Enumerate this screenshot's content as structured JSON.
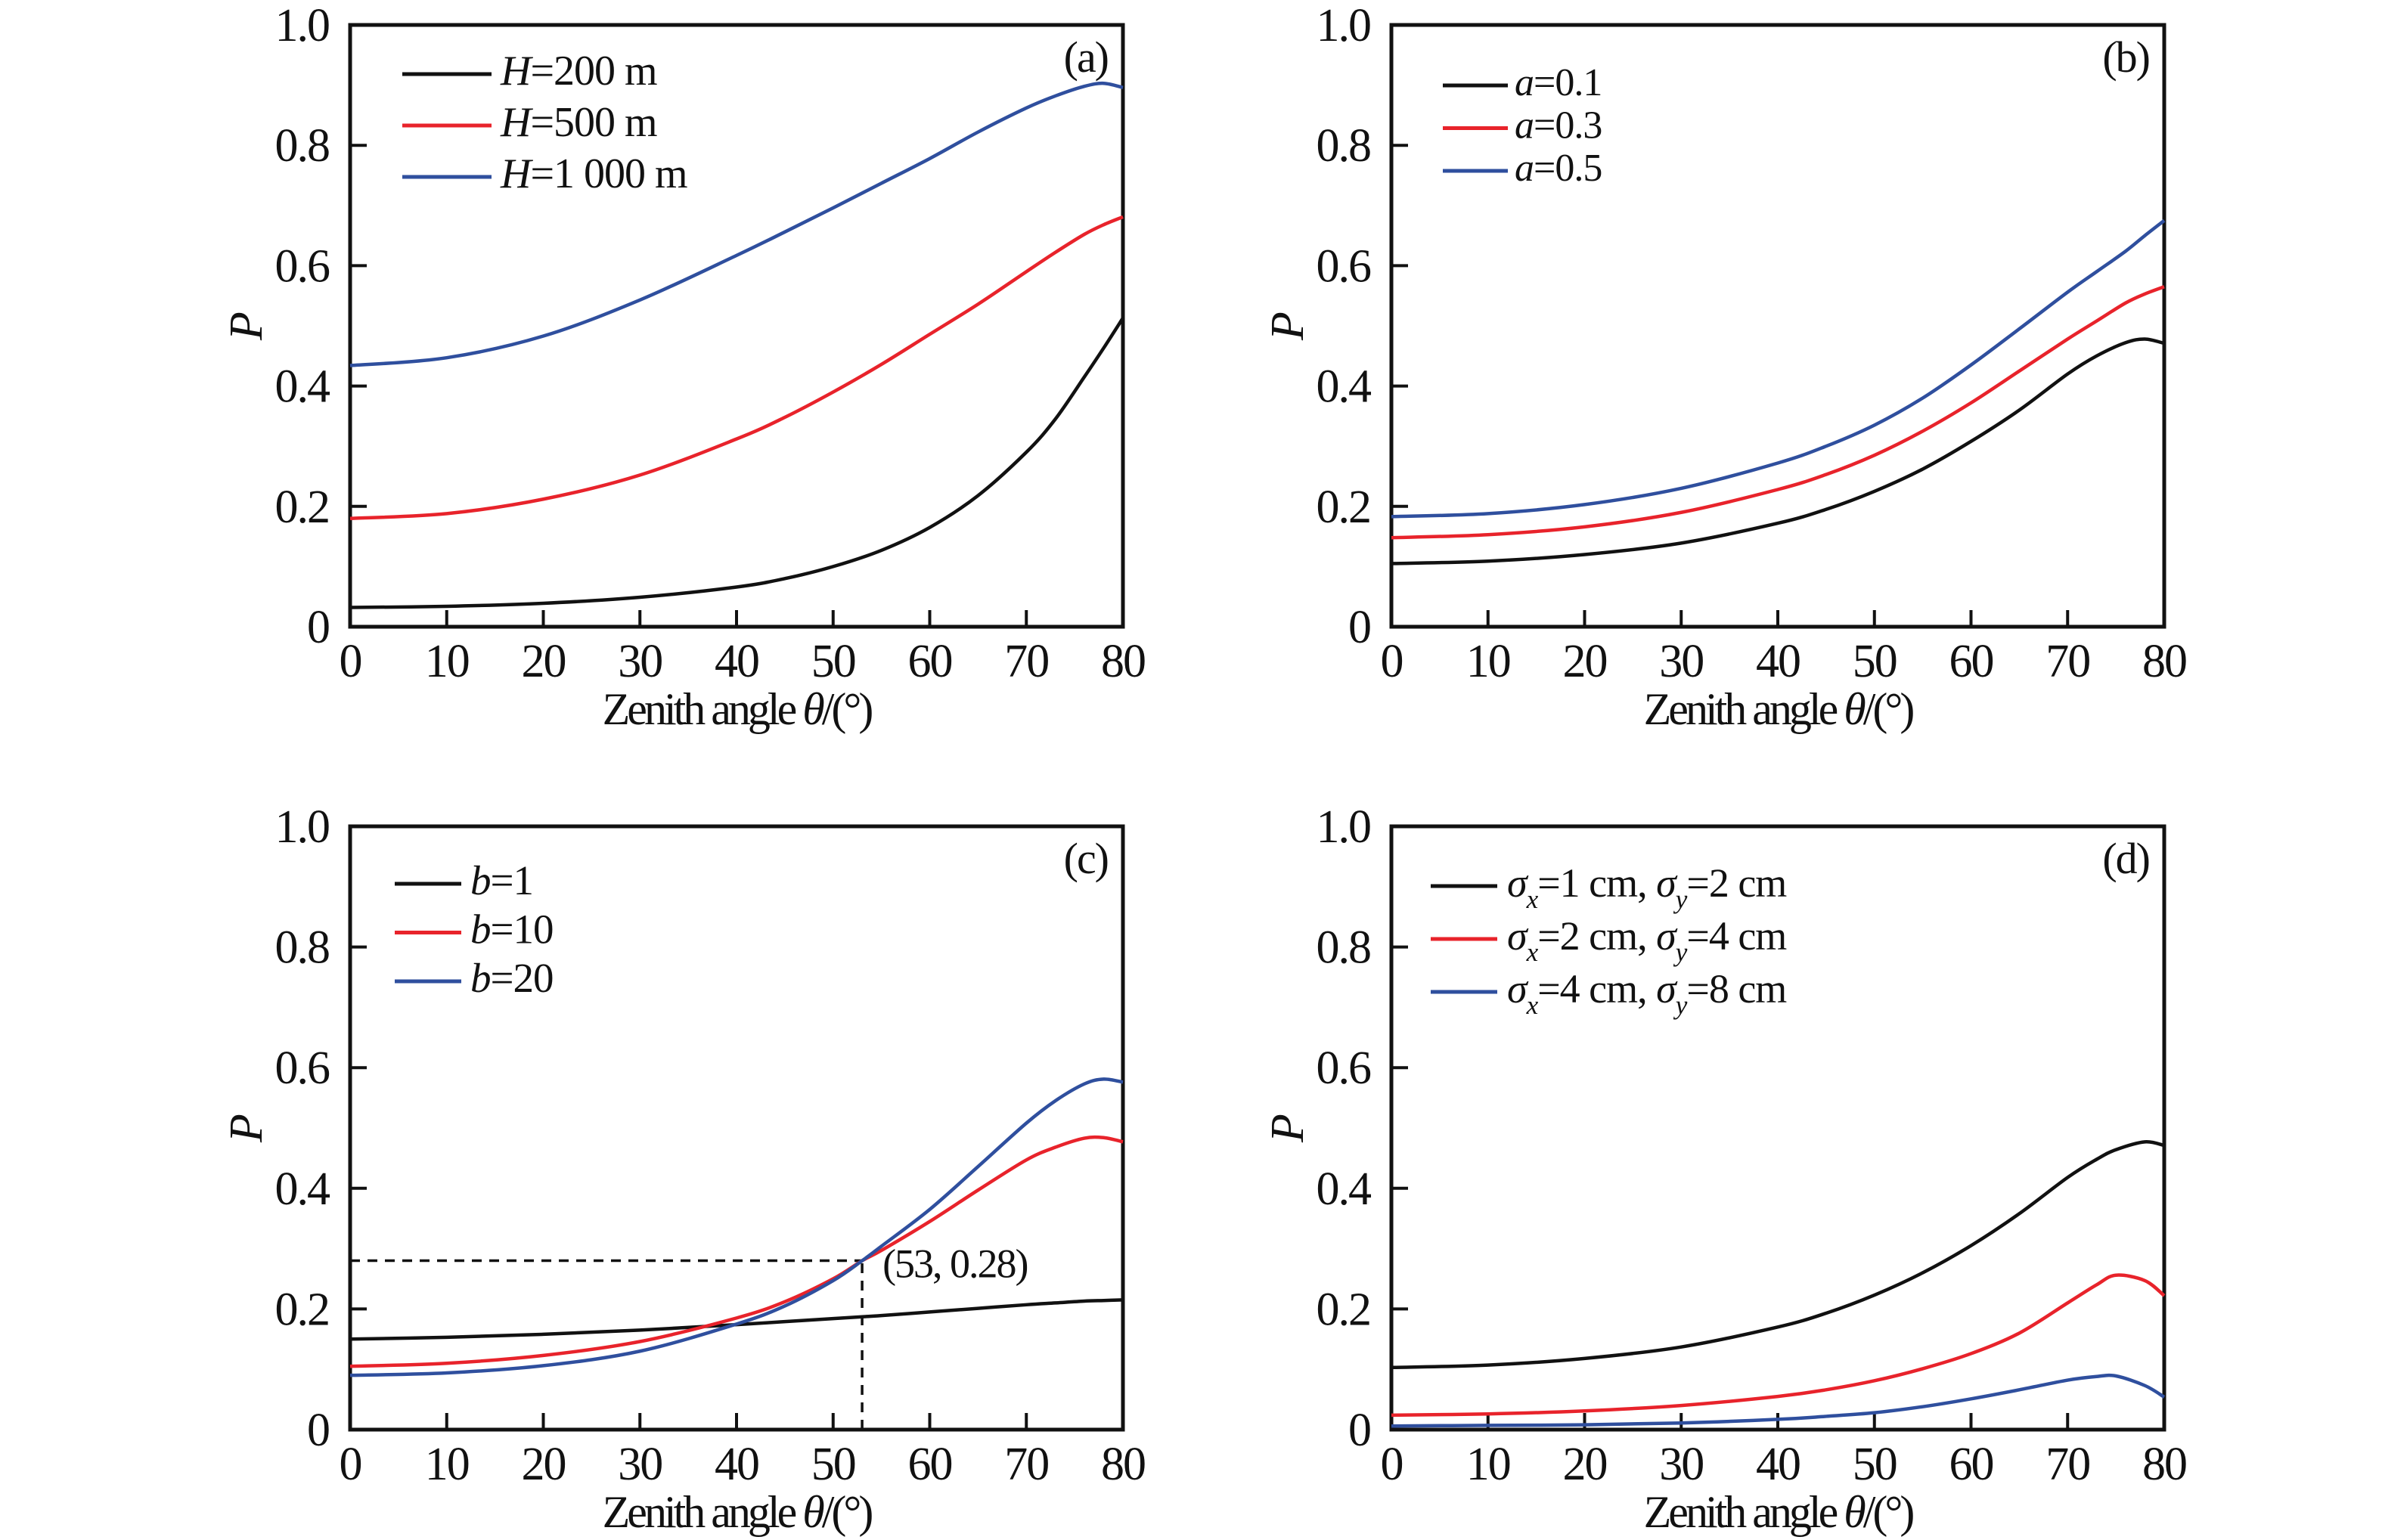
{
  "figure": {
    "background": "#ffffff"
  },
  "palette": {
    "black": "#111111",
    "red": "#e8232b",
    "blue": "#2f4f9e"
  },
  "axes": {
    "xlabel_parts": [
      {
        "t": "Zenith angle "
      },
      {
        "t": "θ",
        "i": true
      },
      {
        "t": "/(°)"
      }
    ],
    "ylabel_parts": [
      {
        "t": "P",
        "i": true
      }
    ],
    "xticks": [
      0,
      10,
      20,
      30,
      40,
      50,
      60,
      70,
      80
    ],
    "yticks": [
      0,
      0.2,
      0.4,
      0.6,
      0.8,
      1.0
    ],
    "ytick_labels": [
      "0",
      "0.2",
      "0.4",
      "0.6",
      "0.8",
      "1.0"
    ],
    "xlim": [
      0,
      80
    ],
    "ylim": [
      0,
      1
    ],
    "grid": false,
    "legend_position": "upper-left-inside"
  },
  "chart_data": [
    {
      "id": "a",
      "type": "line",
      "panel_label": "(a)",
      "xlabel": "Zenith angle θ/(°)",
      "ylabel": "P",
      "x": [
        0,
        10,
        20,
        30,
        40,
        45,
        50,
        55,
        60,
        65,
        70,
        73,
        76,
        78,
        80
      ],
      "series": [
        {
          "name": "H=200 m",
          "name_parts": [
            {
              "t": "H",
              "i": true
            },
            {
              "t": "=200 m"
            }
          ],
          "color": "black",
          "values": [
            0.032,
            0.034,
            0.039,
            0.049,
            0.066,
            0.08,
            0.1,
            0.127,
            0.165,
            0.218,
            0.29,
            0.345,
            0.415,
            0.463,
            0.513
          ]
        },
        {
          "name": "H=500 m",
          "name_parts": [
            {
              "t": "H",
              "i": true
            },
            {
              "t": "=500 m"
            }
          ],
          "color": "red",
          "values": [
            0.18,
            0.188,
            0.212,
            0.252,
            0.312,
            0.348,
            0.39,
            0.436,
            0.486,
            0.536,
            0.59,
            0.622,
            0.652,
            0.668,
            0.681
          ]
        },
        {
          "name": "H=1 000 m",
          "name_parts": [
            {
              "t": "H",
              "i": true
            },
            {
              "t": "=1 000 m"
            }
          ],
          "color": "blue",
          "values": [
            0.434,
            0.447,
            0.483,
            0.543,
            0.617,
            0.656,
            0.696,
            0.737,
            0.778,
            0.822,
            0.862,
            0.882,
            0.898,
            0.903,
            0.896
          ]
        }
      ]
    },
    {
      "id": "b",
      "type": "line",
      "panel_label": "(b)",
      "xlabel": "Zenith angle θ/(°)",
      "ylabel": "P",
      "x": [
        0,
        10,
        20,
        30,
        40,
        45,
        50,
        55,
        60,
        65,
        70,
        73,
        76,
        78,
        80
      ],
      "series": [
        {
          "name": "a=0.1",
          "name_parts": [
            {
              "t": "a",
              "i": true
            },
            {
              "t": "=0.1"
            }
          ],
          "color": "black",
          "values": [
            0.105,
            0.109,
            0.12,
            0.139,
            0.172,
            0.195,
            0.225,
            0.262,
            0.308,
            0.36,
            0.42,
            0.45,
            0.472,
            0.478,
            0.471
          ]
        },
        {
          "name": "a=0.3",
          "name_parts": [
            {
              "t": "a",
              "i": true
            },
            {
              "t": "=0.3"
            }
          ],
          "color": "red",
          "values": [
            0.148,
            0.153,
            0.166,
            0.19,
            0.228,
            0.253,
            0.285,
            0.325,
            0.372,
            0.425,
            0.478,
            0.508,
            0.538,
            0.553,
            0.565
          ]
        },
        {
          "name": "a=0.5",
          "name_parts": [
            {
              "t": "a",
              "i": true
            },
            {
              "t": "=0.5"
            }
          ],
          "color": "blue",
          "values": [
            0.183,
            0.188,
            0.203,
            0.23,
            0.272,
            0.3,
            0.335,
            0.38,
            0.435,
            0.495,
            0.556,
            0.59,
            0.624,
            0.65,
            0.675
          ]
        }
      ]
    },
    {
      "id": "c",
      "type": "line",
      "panel_label": "(c)",
      "xlabel": "Zenith angle θ/(°)",
      "ylabel": "P",
      "x": [
        0,
        10,
        20,
        30,
        40,
        45,
        50,
        53,
        55,
        60,
        65,
        70,
        73,
        76,
        78,
        80
      ],
      "series": [
        {
          "name": "b=1",
          "name_parts": [
            {
              "t": "b",
              "i": true
            },
            {
              "t": "=1"
            }
          ],
          "color": "black",
          "values": [
            0.15,
            0.153,
            0.158,
            0.165,
            0.174,
            0.179,
            0.184,
            0.187,
            0.189,
            0.195,
            0.201,
            0.207,
            0.21,
            0.213,
            0.214,
            0.215
          ]
        },
        {
          "name": "b=10",
          "name_parts": [
            {
              "t": "b",
              "i": true
            },
            {
              "t": "=10"
            }
          ],
          "color": "red",
          "values": [
            0.105,
            0.11,
            0.123,
            0.146,
            0.185,
            0.212,
            0.25,
            0.28,
            0.297,
            0.345,
            0.397,
            0.447,
            0.468,
            0.483,
            0.484,
            0.477
          ]
        },
        {
          "name": "b=20",
          "name_parts": [
            {
              "t": "b",
              "i": true
            },
            {
              "t": "=20"
            }
          ],
          "color": "blue",
          "values": [
            0.09,
            0.094,
            0.106,
            0.13,
            0.175,
            0.205,
            0.247,
            0.28,
            0.304,
            0.365,
            0.436,
            0.508,
            0.545,
            0.573,
            0.581,
            0.576
          ]
        }
      ],
      "annotation": {
        "text": "(53, 0.28)",
        "x": 53,
        "y": 0.28
      }
    },
    {
      "id": "d",
      "type": "line",
      "panel_label": "(d)",
      "xlabel": "Zenith angle θ/(°)",
      "ylabel": "P",
      "x": [
        0,
        10,
        20,
        30,
        40,
        45,
        50,
        55,
        60,
        65,
        70,
        73,
        75,
        78,
        80
      ],
      "series": [
        {
          "name": "σx=1 cm, σy=2 cm",
          "name_parts": [
            {
              "t": "σ",
              "i": true
            },
            {
              "t": "x",
              "i": true,
              "sub": true
            },
            {
              "t": "=1 cm, "
            },
            {
              "t": "σ",
              "i": true
            },
            {
              "t": "y",
              "i": true,
              "sub": true
            },
            {
              "t": "=2 cm"
            }
          ],
          "color": "black",
          "values": [
            0.103,
            0.107,
            0.118,
            0.137,
            0.17,
            0.193,
            0.223,
            0.26,
            0.305,
            0.358,
            0.418,
            0.448,
            0.464,
            0.477,
            0.471
          ]
        },
        {
          "name": "σx=2 cm, σy=4 cm",
          "name_parts": [
            {
              "t": "σ",
              "i": true
            },
            {
              "t": "x",
              "i": true,
              "sub": true
            },
            {
              "t": "=2 cm, "
            },
            {
              "t": "σ",
              "i": true
            },
            {
              "t": "y",
              "i": true,
              "sub": true
            },
            {
              "t": "=4 cm"
            }
          ],
          "color": "red",
          "values": [
            0.024,
            0.026,
            0.031,
            0.04,
            0.055,
            0.066,
            0.081,
            0.101,
            0.126,
            0.16,
            0.21,
            0.24,
            0.256,
            0.247,
            0.222
          ]
        },
        {
          "name": "σx=4 cm, σy=8 cm",
          "name_parts": [
            {
              "t": "σ",
              "i": true
            },
            {
              "t": "x",
              "i": true,
              "sub": true
            },
            {
              "t": "=4 cm, "
            },
            {
              "t": "σ",
              "i": true
            },
            {
              "t": "y",
              "i": true,
              "sub": true
            },
            {
              "t": "=8 cm"
            }
          ],
          "color": "blue",
          "values": [
            0.006,
            0.007,
            0.008,
            0.011,
            0.017,
            0.022,
            0.028,
            0.038,
            0.051,
            0.066,
            0.082,
            0.088,
            0.089,
            0.073,
            0.054
          ]
        }
      ]
    }
  ]
}
